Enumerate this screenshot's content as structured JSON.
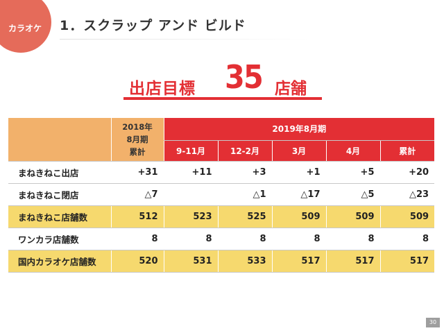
{
  "badge": {
    "label": "カラオケ"
  },
  "header": {
    "title": "1．スクラップ アンド ビルド"
  },
  "headline": {
    "label": "出店目標",
    "number": "35",
    "unit": "店舗"
  },
  "table": {
    "header_2018": [
      "2018年",
      "8月期",
      "累計"
    ],
    "header_2019": "2019年8月期",
    "columns": [
      "9-11月",
      "12-2月",
      "3月",
      "4月",
      "累計"
    ],
    "rows": [
      {
        "label": "まねきねこ出店",
        "highlight": false,
        "values": [
          "+31",
          "+11",
          "+3",
          "+1",
          "+5",
          "+20"
        ]
      },
      {
        "label": "まねきねこ閉店",
        "highlight": false,
        "values": [
          "△7",
          "",
          "△1",
          "△17",
          "△5",
          "△23"
        ]
      },
      {
        "label": "まねきねこ店舗数",
        "highlight": true,
        "values": [
          "512",
          "523",
          "525",
          "509",
          "509",
          "509"
        ]
      },
      {
        "label": "ワンカラ店舗数",
        "highlight": false,
        "values": [
          "8",
          "8",
          "8",
          "8",
          "8",
          "8"
        ]
      },
      {
        "label": "国内カラオケ店舗数",
        "highlight": true,
        "values": [
          "520",
          "531",
          "533",
          "517",
          "517",
          "517"
        ]
      }
    ]
  },
  "colors": {
    "accent_red": "#e32f34",
    "header_orange": "#f2b16b",
    "highlight_yellow": "#f6d96e",
    "badge": "#e56b5a"
  },
  "page": {
    "number": "30"
  }
}
